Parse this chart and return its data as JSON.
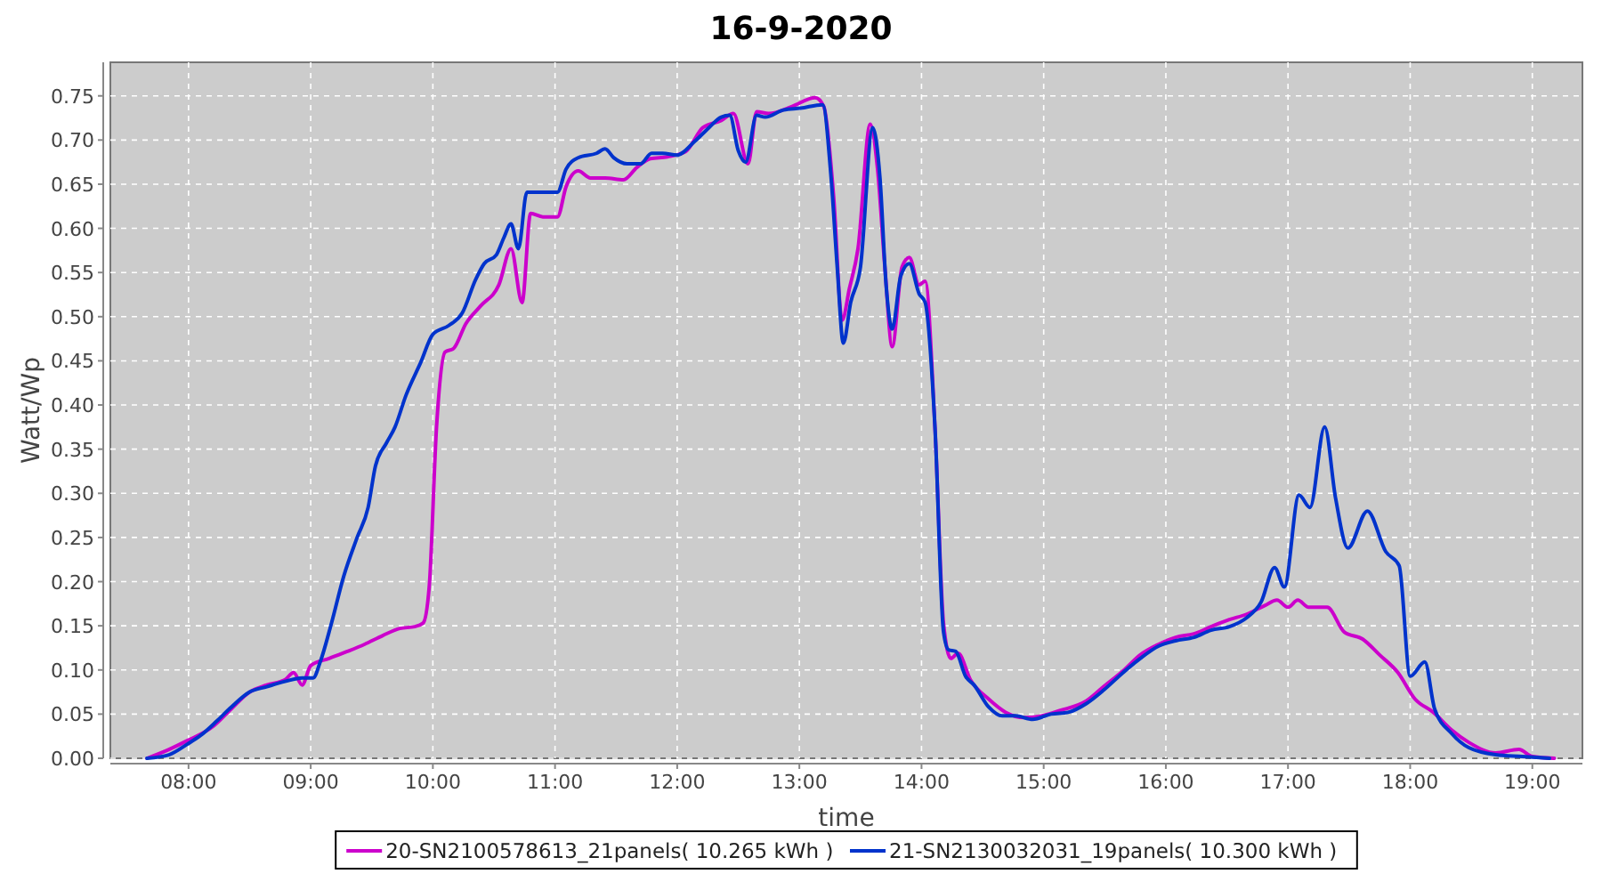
{
  "chart_data": {
    "type": "line",
    "title": "16-9-2020",
    "xlabel": "time",
    "ylabel": "Watt/Wp",
    "xlim": [
      7.36,
      19.41
    ],
    "ylim": [
      0,
      0.788
    ],
    "xticks": [
      {
        "value": 8,
        "label": "08:00"
      },
      {
        "value": 9,
        "label": "09:00"
      },
      {
        "value": 10,
        "label": "10:00"
      },
      {
        "value": 11,
        "label": "11:00"
      },
      {
        "value": 12,
        "label": "12:00"
      },
      {
        "value": 13,
        "label": "13:00"
      },
      {
        "value": 14,
        "label": "14:00"
      },
      {
        "value": 15,
        "label": "15:00"
      },
      {
        "value": 16,
        "label": "16:00"
      },
      {
        "value": 17,
        "label": "17:00"
      },
      {
        "value": 18,
        "label": "18:00"
      },
      {
        "value": 19,
        "label": "19:00"
      }
    ],
    "yticks": [
      {
        "value": 0,
        "label": "0.00"
      },
      {
        "value": 0.05,
        "label": "0.05"
      },
      {
        "value": 0.1,
        "label": "0.10"
      },
      {
        "value": 0.15,
        "label": "0.15"
      },
      {
        "value": 0.2,
        "label": "0.20"
      },
      {
        "value": 0.25,
        "label": "0.25"
      },
      {
        "value": 0.3,
        "label": "0.30"
      },
      {
        "value": 0.35,
        "label": "0.35"
      },
      {
        "value": 0.4,
        "label": "0.40"
      },
      {
        "value": 0.45,
        "label": "0.45"
      },
      {
        "value": 0.5,
        "label": "0.50"
      },
      {
        "value": 0.55,
        "label": "0.55"
      },
      {
        "value": 0.6,
        "label": "0.60"
      },
      {
        "value": 0.65,
        "label": "0.65"
      },
      {
        "value": 0.7,
        "label": "0.70"
      },
      {
        "value": 0.75,
        "label": "0.75"
      }
    ],
    "grid": true,
    "legend": "bottom",
    "marker": "none",
    "line_style": "solid",
    "series": [
      {
        "name": "20-SN2100578613_21panels( 10.265 kWh )",
        "color": "#cc00cc",
        "x": [
          7.66,
          7.84,
          7.99,
          8.2,
          8.35,
          8.5,
          8.64,
          8.79,
          8.86,
          8.93,
          9.0,
          9.15,
          9.3,
          9.44,
          9.59,
          9.73,
          9.85,
          9.92,
          9.97,
          10.03,
          10.1,
          10.17,
          10.27,
          10.39,
          10.54,
          10.64,
          10.73,
          10.8,
          10.9,
          11.02,
          11.09,
          11.19,
          11.29,
          11.41,
          11.56,
          11.67,
          11.78,
          11.92,
          12.07,
          12.21,
          12.36,
          12.46,
          12.58,
          12.65,
          12.75,
          12.94,
          13.13,
          13.2,
          13.28,
          13.35,
          13.41,
          13.48,
          13.58,
          13.64,
          13.7,
          13.76,
          13.84,
          13.9,
          13.98,
          14.03,
          14.11,
          14.18,
          14.24,
          14.3,
          14.4,
          14.55,
          14.69,
          14.84,
          14.98,
          15.13,
          15.35,
          15.49,
          15.65,
          15.79,
          15.94,
          16.08,
          16.23,
          16.37,
          16.52,
          16.66,
          16.81,
          16.91,
          17.0,
          17.08,
          17.17,
          17.32,
          17.46,
          17.61,
          17.75,
          17.9,
          18.04,
          18.19,
          18.34,
          18.48,
          18.7,
          18.89,
          19.0,
          19.18
        ],
        "values": [
          0,
          0.01,
          0.02,
          0.036,
          0.056,
          0.075,
          0.083,
          0.089,
          0.097,
          0.083,
          0.105,
          0.113,
          0.121,
          0.129,
          0.139,
          0.147,
          0.149,
          0.153,
          0.194,
          0.375,
          0.46,
          0.464,
          0.492,
          0.512,
          0.536,
          0.577,
          0.516,
          0.617,
          0.613,
          0.613,
          0.647,
          0.665,
          0.657,
          0.657,
          0.655,
          0.669,
          0.679,
          0.681,
          0.687,
          0.714,
          0.722,
          0.73,
          0.673,
          0.732,
          0.73,
          0.738,
          0.748,
          0.738,
          0.637,
          0.496,
          0.532,
          0.577,
          0.718,
          0.667,
          0.556,
          0.466,
          0.556,
          0.567,
          0.536,
          0.54,
          0.375,
          0.153,
          0.113,
          0.119,
          0.089,
          0.067,
          0.052,
          0.046,
          0.048,
          0.054,
          0.065,
          0.081,
          0.099,
          0.117,
          0.129,
          0.137,
          0.141,
          0.149,
          0.157,
          0.163,
          0.173,
          0.179,
          0.171,
          0.179,
          0.171,
          0.171,
          0.143,
          0.135,
          0.117,
          0.097,
          0.067,
          0.052,
          0.032,
          0.018,
          0.006,
          0.01,
          0.002,
          0
        ]
      },
      {
        "name": "21-SN2130032031_19panels( 10.300 kWh )",
        "color": "#0033cc",
        "x": [
          7.66,
          7.84,
          7.99,
          8.1,
          8.23,
          8.35,
          8.5,
          8.64,
          8.79,
          8.93,
          9.02,
          9.08,
          9.17,
          9.27,
          9.38,
          9.47,
          9.53,
          9.62,
          9.69,
          9.78,
          9.9,
          10.0,
          10.13,
          10.24,
          10.35,
          10.42,
          10.52,
          10.58,
          10.64,
          10.7,
          10.77,
          10.87,
          11.02,
          11.09,
          11.19,
          11.34,
          11.41,
          11.48,
          11.59,
          11.7,
          11.79,
          11.88,
          12.0,
          12.14,
          12.26,
          12.36,
          12.43,
          12.5,
          12.56,
          12.65,
          12.72,
          12.87,
          13.01,
          13.19,
          13.26,
          13.31,
          13.36,
          13.42,
          13.5,
          13.6,
          13.66,
          13.71,
          13.76,
          13.83,
          13.9,
          13.98,
          14.03,
          14.11,
          14.18,
          14.22,
          14.28,
          14.36,
          14.43,
          14.55,
          14.66,
          14.77,
          14.91,
          15.06,
          15.2,
          15.35,
          15.49,
          15.65,
          15.79,
          15.94,
          16.08,
          16.23,
          16.37,
          16.52,
          16.66,
          16.78,
          16.89,
          16.97,
          17.09,
          17.18,
          17.3,
          17.39,
          17.49,
          17.65,
          17.8,
          17.91,
          18.0,
          18.12,
          18.2,
          18.34,
          18.48,
          18.7,
          18.92,
          19.14
        ],
        "values": [
          0,
          0.004,
          0.016,
          0.026,
          0.042,
          0.058,
          0.075,
          0.081,
          0.087,
          0.091,
          0.091,
          0.11,
          0.153,
          0.206,
          0.25,
          0.284,
          0.331,
          0.357,
          0.375,
          0.411,
          0.448,
          0.48,
          0.49,
          0.504,
          0.542,
          0.56,
          0.57,
          0.589,
          0.605,
          0.577,
          0.641,
          0.641,
          0.641,
          0.667,
          0.68,
          0.685,
          0.69,
          0.68,
          0.673,
          0.673,
          0.685,
          0.685,
          0.683,
          0.698,
          0.714,
          0.726,
          0.728,
          0.688,
          0.675,
          0.728,
          0.726,
          0.734,
          0.736,
          0.74,
          0.657,
          0.556,
          0.47,
          0.516,
          0.556,
          0.714,
          0.657,
          0.536,
          0.486,
          0.546,
          0.56,
          0.526,
          0.516,
          0.375,
          0.143,
          0.123,
          0.121,
          0.093,
          0.083,
          0.058,
          0.048,
          0.048,
          0.044,
          0.05,
          0.052,
          0.062,
          0.077,
          0.097,
          0.113,
          0.127,
          0.133,
          0.137,
          0.145,
          0.149,
          0.159,
          0.177,
          0.216,
          0.194,
          0.298,
          0.284,
          0.375,
          0.294,
          0.238,
          0.28,
          0.234,
          0.218,
          0.093,
          0.109,
          0.056,
          0.028,
          0.012,
          0.004,
          0.002,
          0
        ]
      }
    ]
  }
}
